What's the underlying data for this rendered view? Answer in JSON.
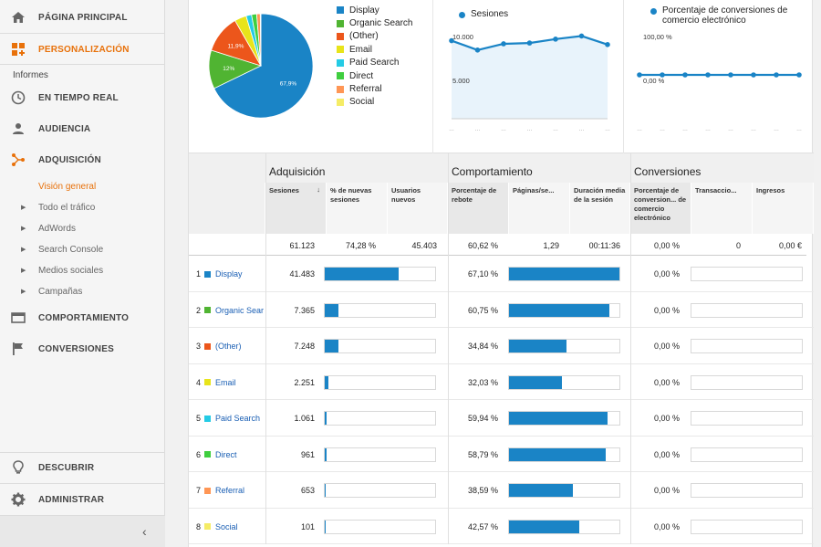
{
  "sidebar": {
    "top_items": [
      {
        "label": "PÁGINA PRINCIPAL",
        "icon": "home-icon"
      },
      {
        "label": "PERSONALIZACIÓN",
        "icon": "dashboard-plus-icon",
        "active": true
      }
    ],
    "section_label": "Informes",
    "report_items": [
      {
        "label": "EN TIEMPO REAL",
        "icon": "clock-icon"
      },
      {
        "label": "AUDIENCIA",
        "icon": "person-icon"
      },
      {
        "label": "ADQUISICIÓN",
        "icon": "acquisition-icon",
        "active": true
      }
    ],
    "sub_items": [
      {
        "label": "Visión general",
        "current": true
      },
      {
        "label": "Todo el tráfico"
      },
      {
        "label": "AdWords"
      },
      {
        "label": "Search Console"
      },
      {
        "label": "Medios sociales"
      },
      {
        "label": "Campañas"
      }
    ],
    "more_items": [
      {
        "label": "COMPORTAMIENTO",
        "icon": "behavior-icon"
      },
      {
        "label": "CONVERSIONES",
        "icon": "flag-icon"
      }
    ],
    "bottom_items": [
      {
        "label": "DESCUBRIR",
        "icon": "lightbulb-icon"
      },
      {
        "label": "ADMINISTRAR",
        "icon": "gear-icon"
      }
    ],
    "collapse_icon": "chevron-left-icon"
  },
  "colors": {
    "accent": "#e8710a",
    "bar": "#1a84c6",
    "link": "#1a5fb4"
  },
  "pie": {
    "labels": [
      "67,9%",
      "12%",
      "11,9%"
    ],
    "legend": [
      {
        "name": "Display",
        "color": "#1a84c6"
      },
      {
        "name": "Organic Search",
        "color": "#50b432"
      },
      {
        "name": "(Other)",
        "color": "#ec561b"
      },
      {
        "name": "Email",
        "color": "#e8e41a"
      },
      {
        "name": "Paid Search",
        "color": "#24cbe5"
      },
      {
        "name": "Direct",
        "color": "#3fce3f"
      },
      {
        "name": "Referral",
        "color": "#ff9655"
      },
      {
        "name": "Social",
        "color": "#f5ec66"
      }
    ]
  },
  "chart_data": [
    {
      "type": "pie",
      "categories": [
        "Display",
        "Organic Search",
        "(Other)",
        "Email",
        "Paid Search",
        "Direct",
        "Referral",
        "Social"
      ],
      "values": [
        67.9,
        12.0,
        11.9,
        3.7,
        1.7,
        1.6,
        1.1,
        0.2
      ]
    },
    {
      "type": "line",
      "title": "Sesiones",
      "series": [
        {
          "name": "Sesiones",
          "values": [
            10000,
            8800,
            9600,
            9700,
            10200,
            10600,
            9500
          ]
        }
      ],
      "ytick_labels": [
        "10.000",
        "5.000"
      ],
      "ylim": [
        0,
        11000
      ]
    },
    {
      "type": "line",
      "title": "Porcentaje de conversiones de comercio electrónico",
      "series": [
        {
          "name": "Porcentaje de conversiones de comercio electrónico",
          "values": [
            0,
            0,
            0,
            0,
            0,
            0,
            0,
            0
          ]
        }
      ],
      "ytick_labels": [
        "100,00 %",
        "0,00 %"
      ],
      "ylim": [
        0,
        100
      ]
    }
  ],
  "table": {
    "groups": [
      "Adquisición",
      "Comportamiento",
      "Conversiones"
    ],
    "columns": [
      "Sesiones",
      "% de nuevas sesiones",
      "Usuarios nuevos",
      "Porcentaje de rebote",
      "Páginas/se...",
      "Duración media de la sesión",
      "Porcentaje de conversion... de comercio electrónico",
      "Transaccio...",
      "Ingresos"
    ],
    "sort_icon": "arrow-down-icon",
    "totals": [
      "61.123",
      "74,28 %",
      "45.403",
      "60,62 %",
      "1,29",
      "00:11:36",
      "0,00 %",
      "0",
      "0,00 €"
    ],
    "rows": [
      {
        "index": "1",
        "name": "Display",
        "color": "#1a84c6",
        "sessions": "41.483",
        "new_pct": 0.67,
        "bounce": "67,10 %",
        "bounce_pct": 1.0,
        "conv": "0,00 %"
      },
      {
        "index": "2",
        "name": "Organic Sear",
        "color": "#50b432",
        "sessions": "7.365",
        "new_pct": 0.12,
        "bounce": "60,75 %",
        "bounce_pct": 0.905,
        "conv": "0,00 %"
      },
      {
        "index": "3",
        "name": "(Other)",
        "color": "#ec561b",
        "sessions": "7.248",
        "new_pct": 0.12,
        "bounce": "34,84 %",
        "bounce_pct": 0.52,
        "conv": "0,00 %"
      },
      {
        "index": "4",
        "name": "Email",
        "color": "#e8e41a",
        "sessions": "2.251",
        "new_pct": 0.035,
        "bounce": "32,03 %",
        "bounce_pct": 0.477,
        "conv": "0,00 %"
      },
      {
        "index": "5",
        "name": "Paid Search",
        "color": "#24cbe5",
        "sessions": "1.061",
        "new_pct": 0.015,
        "bounce": "59,94 %",
        "bounce_pct": 0.893,
        "conv": "0,00 %"
      },
      {
        "index": "6",
        "name": "Direct",
        "color": "#3fce3f",
        "sessions": "961",
        "new_pct": 0.015,
        "bounce": "58,79 %",
        "bounce_pct": 0.876,
        "conv": "0,00 %"
      },
      {
        "index": "7",
        "name": "Referral",
        "color": "#ff9655",
        "sessions": "653",
        "new_pct": 0.01,
        "bounce": "38,59 %",
        "bounce_pct": 0.575,
        "conv": "0,00 %"
      },
      {
        "index": "8",
        "name": "Social",
        "color": "#f5ec66",
        "sessions": "101",
        "new_pct": 0.005,
        "bounce": "42,57 %",
        "bounce_pct": 0.634,
        "conv": "0,00 %"
      }
    ]
  }
}
